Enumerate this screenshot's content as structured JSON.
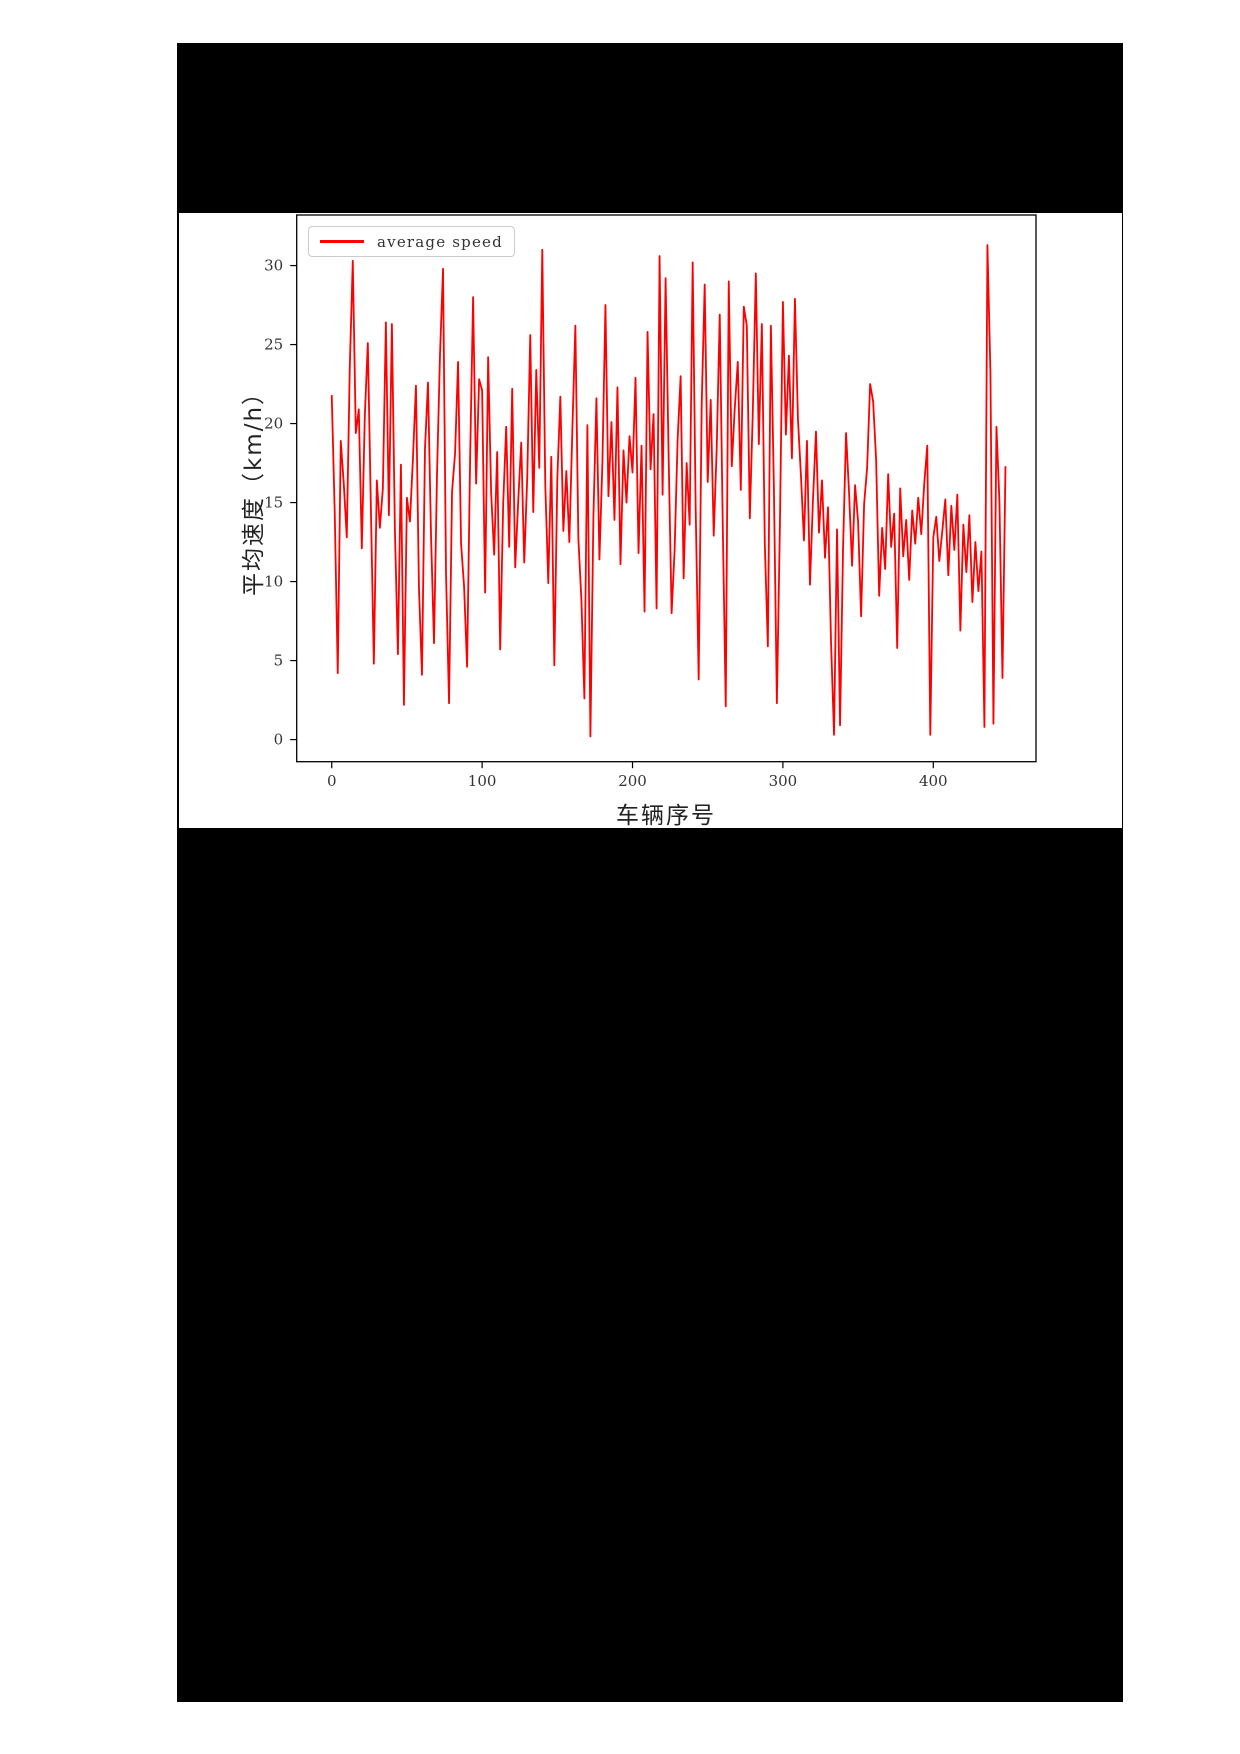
{
  "page": {
    "background": "#ffffff"
  },
  "figure": {
    "background": "#000000"
  },
  "colors": {
    "line": "#ff0000",
    "axis": "#000000",
    "axis_text": "#333333",
    "legend_border": "#cccccc",
    "chart_background": "#ffffff"
  },
  "chart_data": {
    "type": "line",
    "title": "",
    "xlabel": "车辆序号",
    "ylabel": "平均速度（km/h）",
    "legend": {
      "label": "average speed",
      "position": "upper-left"
    },
    "grid": false,
    "xlim": [
      -23.3,
      468.3
    ],
    "ylim": [
      -1.4,
      33.2
    ],
    "x_ticks": [
      0,
      100,
      200,
      300,
      400
    ],
    "y_ticks": [
      0,
      5,
      10,
      15,
      20,
      25,
      30
    ],
    "series": [
      {
        "name": "average speed",
        "color": "#ff0000",
        "x_start": 0,
        "x_step": 2,
        "values": [
          21.8,
          14.3,
          4.2,
          18.9,
          16.2,
          12.8,
          23.6,
          30.3,
          19.4,
          20.9,
          12.1,
          20.5,
          25.1,
          14.8,
          4.8,
          16.4,
          13.4,
          15.9,
          26.4,
          14.2,
          26.3,
          13.3,
          5.4,
          17.4,
          2.2,
          15.3,
          13.8,
          17.8,
          22.4,
          9.6,
          4.1,
          18.4,
          22.6,
          13.0,
          6.1,
          16.8,
          24.4,
          29.8,
          10.5,
          2.3,
          15.7,
          18.1,
          23.9,
          12.4,
          9.7,
          4.6,
          17.7,
          28.0,
          16.2,
          22.8,
          22.1,
          9.3,
          24.2,
          15.6,
          11.7,
          18.2,
          5.7,
          14.9,
          19.8,
          12.2,
          22.2,
          10.9,
          15.1,
          18.8,
          11.2,
          16.6,
          25.6,
          14.4,
          23.4,
          17.2,
          31.0,
          16.1,
          9.9,
          17.9,
          4.7,
          16.5,
          21.7,
          13.2,
          17.0,
          12.5,
          19.6,
          26.2,
          12.7,
          8.9,
          2.6,
          19.9,
          0.2,
          14.1,
          21.6,
          11.4,
          17.6,
          27.5,
          15.4,
          20.1,
          13.9,
          22.3,
          11.1,
          18.3,
          15.0,
          19.2,
          16.9,
          22.9,
          11.8,
          18.6,
          8.1,
          25.8,
          17.1,
          20.6,
          8.3,
          30.6,
          15.5,
          29.2,
          18.0,
          8.0,
          12.0,
          19.0,
          23.0,
          10.2,
          17.5,
          13.6,
          30.2,
          14.6,
          3.8,
          21.2,
          28.8,
          16.3,
          21.5,
          12.9,
          18.5,
          26.9,
          13.7,
          2.1,
          29.0,
          17.3,
          21.0,
          23.9,
          15.8,
          27.4,
          26.2,
          14.0,
          20.8,
          29.5,
          18.7,
          26.3,
          12.3,
          5.9,
          26.2,
          16.0,
          2.3,
          13.5,
          27.7,
          19.3,
          24.3,
          17.8,
          27.9,
          20.3,
          16.7,
          12.6,
          18.9,
          9.8,
          15.2,
          19.5,
          13.1,
          16.4,
          11.5,
          14.7,
          6.2,
          0.3,
          13.3,
          0.9,
          12.1,
          19.4,
          15.6,
          11.0,
          16.1,
          13.8,
          7.8,
          14.9,
          17.2,
          22.5,
          21.4,
          17.7,
          9.1,
          13.4,
          10.8,
          16.8,
          12.2,
          14.3,
          5.8,
          15.9,
          11.6,
          13.9,
          10.1,
          14.5,
          12.4,
          15.3,
          13.0,
          16.2,
          18.6,
          0.3,
          12.8,
          14.1,
          11.3,
          13.2,
          15.2,
          10.4,
          14.8,
          12.0,
          15.5,
          6.9,
          13.6,
          10.6,
          14.2,
          8.7,
          12.5,
          9.4,
          11.9,
          0.8,
          31.3,
          23.2,
          1.0,
          19.8,
          15.0,
          3.9,
          17.3
        ]
      }
    ]
  }
}
